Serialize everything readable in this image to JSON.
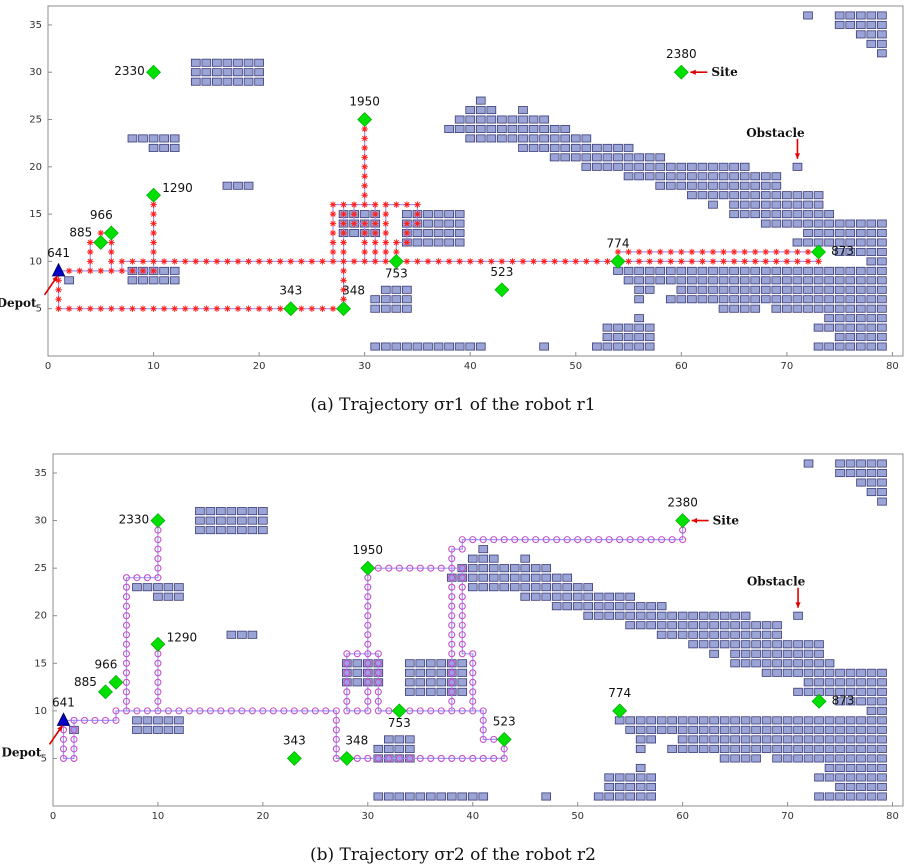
{
  "chart_data": [
    {
      "type": "scatter",
      "title": "",
      "caption": "(a) Trajectory σr1 of the robot r1",
      "xlabel": "",
      "ylabel": "",
      "xlim": [
        0,
        81
      ],
      "ylim": [
        0,
        37
      ],
      "xticks": [
        0,
        10,
        20,
        30,
        40,
        50,
        60,
        70,
        80
      ],
      "yticks": [
        5,
        10,
        15,
        20,
        25,
        30,
        35
      ],
      "grid": false,
      "annotations": [
        "Depot",
        "Site",
        "Obstacle"
      ],
      "path_style": "red-asterisk",
      "trajectory": [
        [
          1,
          9
        ],
        [
          7,
          9
        ],
        [
          7,
          10
        ],
        [
          73,
          10
        ],
        [
          73,
          11
        ],
        [
          54,
          11
        ],
        [
          54,
          10
        ],
        [
          33,
          10
        ],
        [
          32,
          10
        ],
        [
          32,
          16
        ],
        [
          35,
          16
        ],
        [
          35,
          14
        ],
        [
          34,
          14
        ],
        [
          34,
          12
        ],
        [
          33,
          12
        ],
        [
          33,
          10
        ],
        [
          31,
          10
        ],
        [
          31,
          16
        ],
        [
          30,
          16
        ],
        [
          30,
          25
        ],
        [
          30,
          16
        ],
        [
          27,
          16
        ],
        [
          27,
          10
        ],
        [
          30,
          10
        ],
        [
          30,
          14
        ],
        [
          29,
          14
        ],
        [
          29,
          16
        ],
        [
          28,
          16
        ],
        [
          28,
          5
        ],
        [
          23,
          5
        ],
        [
          1,
          5
        ],
        [
          1,
          9
        ],
        [
          4,
          9
        ],
        [
          4,
          12
        ],
        [
          5,
          12
        ],
        [
          5,
          13
        ],
        [
          6,
          13
        ],
        [
          6,
          9
        ],
        [
          10,
          9
        ],
        [
          10,
          17
        ],
        [
          10,
          10
        ]
      ],
      "waypoints": [
        [
          1,
          9
        ],
        [
          5,
          12
        ],
        [
          6,
          13
        ],
        [
          10,
          17
        ],
        [
          10,
          30
        ],
        [
          23,
          5
        ],
        [
          28,
          5
        ],
        [
          30,
          25
        ],
        [
          33,
          10
        ],
        [
          43,
          7
        ],
        [
          54,
          10
        ],
        [
          60,
          30
        ],
        [
          73,
          11
        ]
      ]
    },
    {
      "type": "scatter",
      "title": "",
      "caption": "(b) Trajectory σr2 of the robot r2",
      "xlabel": "",
      "ylabel": "",
      "xlim": [
        0,
        81
      ],
      "ylim": [
        0,
        37
      ],
      "xticks": [
        0,
        10,
        20,
        30,
        40,
        50,
        60,
        70,
        80
      ],
      "yticks": [
        5,
        10,
        15,
        20,
        25,
        30,
        35
      ],
      "grid": false,
      "annotations": [
        "Depot",
        "Site",
        "Obstacle"
      ],
      "path_style": "violet-circle",
      "trajectory": [
        [
          1,
          9
        ],
        [
          2,
          9
        ],
        [
          2,
          5
        ],
        [
          1,
          5
        ],
        [
          1,
          9
        ],
        [
          6,
          9
        ],
        [
          6,
          10
        ],
        [
          7,
          10
        ],
        [
          7,
          24
        ],
        [
          10,
          24
        ],
        [
          10,
          30
        ],
        [
          10,
          24
        ],
        [
          7,
          24
        ],
        [
          7,
          10
        ],
        [
          10,
          10
        ],
        [
          10,
          17
        ],
        [
          10,
          10
        ],
        [
          27,
          10
        ],
        [
          27,
          5
        ],
        [
          43,
          5
        ],
        [
          43,
          7
        ],
        [
          41,
          7
        ],
        [
          41,
          10
        ],
        [
          38,
          10
        ],
        [
          38,
          25
        ],
        [
          30,
          25
        ],
        [
          30,
          10
        ],
        [
          28,
          10
        ],
        [
          28,
          16
        ],
        [
          31,
          16
        ],
        [
          31,
          10
        ],
        [
          40,
          10
        ],
        [
          40,
          16
        ],
        [
          39,
          16
        ],
        [
          39,
          25
        ],
        [
          38,
          25
        ],
        [
          38,
          27
        ],
        [
          39,
          27
        ],
        [
          39,
          28
        ],
        [
          60,
          28
        ],
        [
          60,
          30
        ]
      ],
      "waypoints": [
        [
          1,
          9
        ],
        [
          5,
          12
        ],
        [
          6,
          13
        ],
        [
          10,
          17
        ],
        [
          10,
          30
        ],
        [
          23,
          5
        ],
        [
          28,
          5
        ],
        [
          30,
          25
        ],
        [
          33,
          10
        ],
        [
          43,
          7
        ],
        [
          54,
          10
        ],
        [
          60,
          30
        ],
        [
          73,
          11
        ]
      ]
    }
  ],
  "waypoint_labels": [
    "641",
    "885",
    "966",
    "1290",
    "2330",
    "343",
    "348",
    "1950",
    "753",
    "523",
    "774",
    "2380",
    "873"
  ],
  "waypoint_color": "#00e000",
  "depot_color": "#0000c8",
  "obstacle_color": "#9aa4d6",
  "r1_path_color": "#ff2020",
  "r2_path_color": "#c850c8",
  "route_line_color": "#9a9aff",
  "obstacles": [
    {
      "y": 36,
      "x": [
        72
      ]
    },
    {
      "y": 36,
      "x": [
        75,
        76,
        77,
        78,
        79
      ]
    },
    {
      "y": 35,
      "x": [
        75,
        76,
        77,
        78,
        79
      ]
    },
    {
      "y": 34,
      "x": [
        77,
        78,
        79
      ]
    },
    {
      "y": 33,
      "x": [
        78,
        79
      ]
    },
    {
      "y": 32,
      "x": [
        79
      ]
    },
    {
      "y": 31,
      "x": [
        14,
        15,
        16,
        17,
        18,
        19,
        20
      ]
    },
    {
      "y": 30,
      "x": [
        14,
        15,
        16,
        17,
        18,
        19,
        20
      ]
    },
    {
      "y": 29,
      "x": [
        14,
        15,
        16,
        17,
        18,
        19,
        20
      ]
    },
    {
      "y": 27,
      "x": [
        41
      ]
    },
    {
      "y": 26,
      "x": [
        40,
        41,
        42,
        45
      ]
    },
    {
      "y": 25,
      "x": [
        39,
        40,
        41,
        42,
        43,
        44,
        45,
        46,
        47
      ]
    },
    {
      "y": 24,
      "x": [
        38,
        39,
        40,
        41,
        42,
        43,
        44,
        45,
        46,
        47,
        48,
        49
      ]
    },
    {
      "y": 23,
      "x": [
        40,
        41,
        42,
        43,
        44,
        45,
        46,
        47,
        48,
        49,
        50,
        51
      ]
    },
    {
      "y": 23,
      "x": [
        8,
        9,
        10,
        11,
        12
      ]
    },
    {
      "y": 22,
      "x": [
        10,
        11,
        12
      ]
    },
    {
      "y": 22,
      "x": [
        45,
        46,
        47,
        48,
        49,
        50,
        51,
        52,
        53,
        54,
        55
      ]
    },
    {
      "y": 21,
      "x": [
        48,
        49,
        50,
        51,
        52,
        53,
        54,
        55,
        56,
        57,
        58
      ]
    },
    {
      "y": 20,
      "x": [
        51,
        52,
        53,
        54,
        55,
        56,
        57,
        58,
        59,
        60,
        61,
        62,
        63,
        64,
        65,
        66
      ]
    },
    {
      "y": 20,
      "x": [
        71
      ]
    },
    {
      "y": 19,
      "x": [
        55,
        56,
        57,
        58,
        59,
        60,
        61,
        62,
        63,
        64,
        65,
        66,
        67,
        68,
        69
      ]
    },
    {
      "y": 18,
      "x": [
        17,
        18,
        19
      ]
    },
    {
      "y": 18,
      "x": [
        58,
        59,
        60,
        61,
        62,
        63,
        64,
        65,
        66,
        67,
        68,
        69
      ]
    },
    {
      "y": 17,
      "x": [
        61,
        62,
        63,
        64,
        65,
        66,
        67,
        68,
        69,
        70,
        71,
        72,
        73
      ]
    },
    {
      "y": 16,
      "x": [
        63,
        65,
        66,
        67,
        68,
        69,
        70,
        71,
        72,
        73
      ]
    },
    {
      "y": 15,
      "x": [
        65,
        66,
        67,
        68,
        69,
        70,
        71,
        72,
        73,
        74
      ]
    },
    {
      "y": 15,
      "x": [
        28,
        29,
        30,
        31
      ]
    },
    {
      "y": 15,
      "x": [
        34,
        35,
        36,
        37,
        38,
        39
      ]
    },
    {
      "y": 14,
      "x": [
        68,
        69,
        70,
        71,
        72,
        73,
        74,
        75,
        76,
        77,
        78,
        79
      ]
    },
    {
      "y": 14,
      "x": [
        28,
        29,
        30,
        31
      ]
    },
    {
      "y": 14,
      "x": [
        34,
        35,
        36,
        37,
        38,
        39
      ]
    },
    {
      "y": 13,
      "x": [
        28,
        29,
        30,
        31
      ]
    },
    {
      "y": 13,
      "x": [
        34,
        35,
        36,
        37,
        38,
        39
      ]
    },
    {
      "y": 13,
      "x": [
        72,
        73,
        74,
        75,
        76,
        77,
        78,
        79
      ]
    },
    {
      "y": 12,
      "x": [
        34,
        35,
        36,
        37,
        38,
        39
      ]
    },
    {
      "y": 12,
      "x": [
        71,
        72,
        73,
        74,
        75,
        76,
        77,
        78,
        79
      ]
    },
    {
      "y": 11,
      "x": [
        75,
        76,
        77,
        78,
        79
      ]
    },
    {
      "y": 10,
      "x": [
        78,
        79
      ]
    },
    {
      "y": 9,
      "x": [
        8,
        9,
        10,
        11,
        12
      ]
    },
    {
      "y": 9,
      "x": [
        54,
        55,
        56,
        57,
        58,
        59,
        60,
        61,
        62,
        63,
        64,
        65,
        66,
        67,
        68,
        69,
        70,
        71,
        72,
        73,
        74,
        75,
        76,
        77,
        78,
        79
      ]
    },
    {
      "y": 8,
      "x": [
        8,
        9,
        10,
        11,
        12
      ]
    },
    {
      "y": 8,
      "x": [
        2
      ]
    },
    {
      "y": 8,
      "x": [
        55,
        56,
        57,
        58,
        59,
        60,
        61,
        62,
        63,
        64,
        65,
        66,
        67,
        68,
        69,
        70,
        71,
        72,
        73,
        74,
        75,
        76,
        77,
        78,
        79
      ]
    },
    {
      "y": 7,
      "x": [
        32,
        33,
        34
      ]
    },
    {
      "y": 7,
      "x": [
        56,
        57,
        60,
        61,
        62,
        63,
        64,
        65,
        66,
        67,
        68,
        69,
        70,
        71,
        72,
        73,
        74,
        75,
        76,
        77,
        78,
        79
      ]
    },
    {
      "y": 6,
      "x": [
        31,
        32,
        33,
        34
      ]
    },
    {
      "y": 6,
      "x": [
        56,
        59,
        60,
        61,
        62,
        63,
        64,
        65,
        66,
        67,
        68,
        69,
        70,
        71,
        72,
        73,
        74,
        75,
        76,
        77,
        78,
        79
      ]
    },
    {
      "y": 5,
      "x": [
        31,
        32,
        33,
        34
      ]
    },
    {
      "y": 5,
      "x": [
        64,
        65,
        66,
        67,
        69,
        70,
        71,
        72,
        73,
        74,
        75,
        76,
        77,
        78,
        79
      ]
    },
    {
      "y": 4,
      "x": [
        56
      ]
    },
    {
      "y": 4,
      "x": [
        74,
        75,
        76,
        77,
        78,
        79
      ]
    },
    {
      "y": 3,
      "x": [
        53,
        54,
        55,
        56,
        57
      ]
    },
    {
      "y": 3,
      "x": [
        73,
        74,
        75,
        76,
        77,
        78,
        79
      ]
    },
    {
      "y": 2,
      "x": [
        53,
        54,
        55,
        56,
        57
      ]
    },
    {
      "y": 2,
      "x": [
        75,
        76,
        77,
        78,
        79
      ]
    },
    {
      "y": 1,
      "x": [
        31,
        32,
        33,
        34,
        35,
        36,
        37,
        38,
        39,
        40,
        41
      ]
    },
    {
      "y": 1,
      "x": [
        47
      ]
    },
    {
      "y": 1,
      "x": [
        52,
        53,
        54,
        55,
        56,
        57
      ]
    },
    {
      "y": 1,
      "x": [
        73,
        74,
        75,
        76,
        77,
        78,
        79
      ]
    }
  ]
}
